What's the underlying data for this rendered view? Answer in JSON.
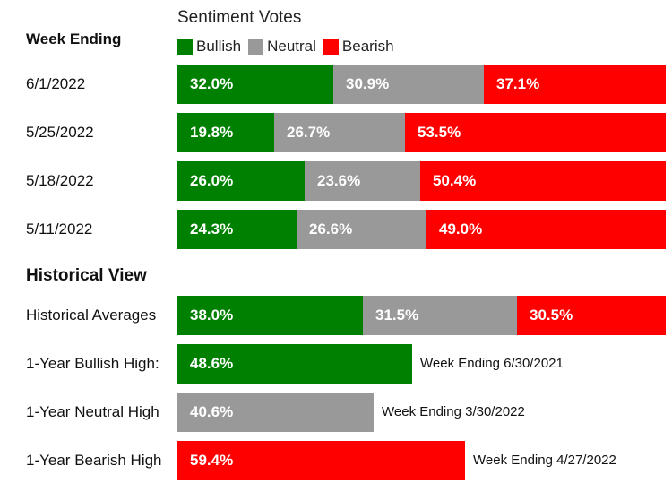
{
  "chart_data": {
    "type": "bar",
    "title": "Sentiment Votes",
    "legend": [
      {
        "name": "Bullish",
        "color": "#008000"
      },
      {
        "name": "Neutral",
        "color": "#999999"
      },
      {
        "name": "Bearish",
        "color": "#ff0000"
      }
    ],
    "weekly_header": "Week Ending",
    "weekly": [
      {
        "label": "6/1/2022",
        "values": [
          32.0,
          30.9,
          37.1
        ],
        "labels": [
          "32.0%",
          "30.9%",
          "37.1%"
        ]
      },
      {
        "label": "5/25/2022",
        "values": [
          19.8,
          26.7,
          53.5
        ],
        "labels": [
          "19.8%",
          "26.7%",
          "53.5%"
        ]
      },
      {
        "label": "5/18/2022",
        "values": [
          26.0,
          23.6,
          50.4
        ],
        "labels": [
          "26.0%",
          "23.6%",
          "50.4%"
        ]
      },
      {
        "label": "5/11/2022",
        "values": [
          24.3,
          26.6,
          49.0
        ],
        "labels": [
          "24.3%",
          "26.6%",
          "49.0%"
        ]
      }
    ],
    "historical_header": "Historical View",
    "historical_averages": {
      "label": "Historical Averages",
      "values": [
        38.0,
        31.5,
        30.5
      ],
      "labels": [
        "38.0%",
        "31.5%",
        "30.5%"
      ]
    },
    "highs": [
      {
        "label": "1-Year Bullish High:",
        "series": 0,
        "value": 48.6,
        "value_label": "48.6%",
        "note": "Week Ending 6/30/2021"
      },
      {
        "label": "1-Year Neutral High",
        "series": 1,
        "value": 40.6,
        "value_label": "40.6%",
        "note": "Week Ending 3/30/2022"
      },
      {
        "label": "1-Year Bearish High",
        "series": 2,
        "value": 59.4,
        "value_label": "59.4%",
        "note": "Week Ending 4/27/2022"
      }
    ]
  }
}
